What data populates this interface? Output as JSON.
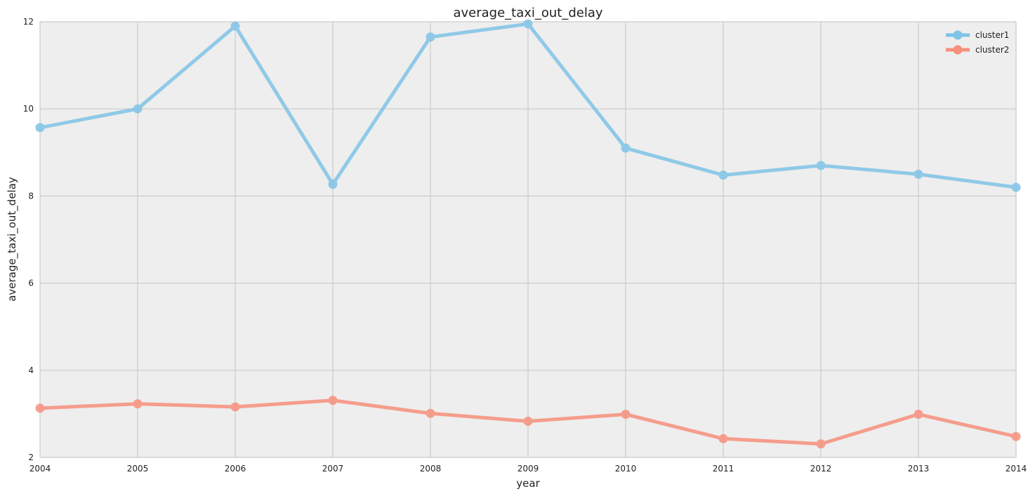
{
  "chart_data": {
    "type": "line",
    "title": "average_taxi_out_delay",
    "xlabel": "year",
    "ylabel": "average_taxi_out_delay",
    "x": [
      2004,
      2005,
      2006,
      2007,
      2008,
      2009,
      2010,
      2011,
      2012,
      2013,
      2014
    ],
    "xlim": [
      2004,
      2014
    ],
    "ylim": [
      2,
      12
    ],
    "xticks": [
      2004,
      2005,
      2006,
      2007,
      2008,
      2009,
      2010,
      2011,
      2012,
      2013,
      2014
    ],
    "yticks": [
      2,
      4,
      6,
      8,
      10,
      12
    ],
    "grid": true,
    "legend_position": "top-right",
    "background_color": "#eeeeee",
    "grid_color": "#cbcbcb",
    "series": [
      {
        "name": "cluster1",
        "color": "#7fc3e6",
        "marker": "circle",
        "values": [
          9.57,
          10.0,
          11.9,
          8.27,
          11.65,
          11.95,
          9.1,
          8.48,
          8.7,
          8.5,
          8.2
        ]
      },
      {
        "name": "cluster2",
        "color": "#f7907c",
        "marker": "circle",
        "values": [
          3.13,
          3.23,
          3.16,
          3.31,
          3.01,
          2.83,
          2.99,
          2.43,
          2.31,
          2.99,
          2.48
        ]
      }
    ]
  }
}
